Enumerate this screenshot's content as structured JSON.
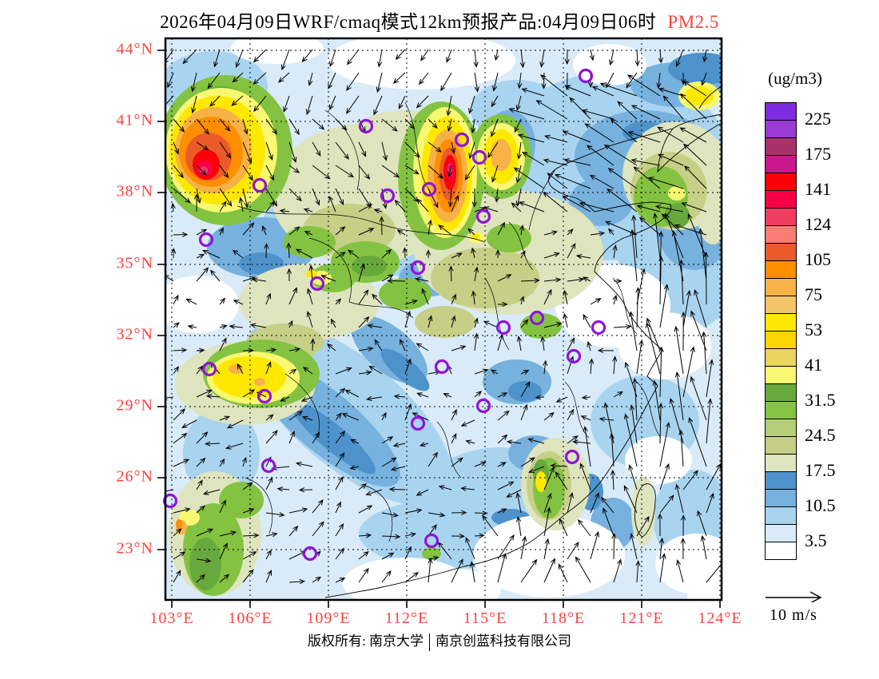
{
  "title": {
    "text": "2026年04月09日WRF/cmaq模式12km预报产品:04月09日06时",
    "pollutant": "PM2.5",
    "highlight_color": "#FF4040"
  },
  "colorbar": {
    "unit": "(ug/m3)",
    "tick_labels": [
      "225",
      "175",
      "141",
      "124",
      "105",
      "75",
      "53",
      "41",
      "31.5",
      "24.5",
      "17.5",
      "10.5",
      "3.5"
    ],
    "cell_colors": [
      "#7D2CE0",
      "#9A3BD6",
      "#A83268",
      "#C9188C",
      "#FB0007",
      "#F80045",
      "#F03C5F",
      "#F97D72",
      "#EB5A29",
      "#FF8E00",
      "#F6B246",
      "#F3C468",
      "#FFE800",
      "#FFD400",
      "#EBD45F",
      "#F8F871",
      "#68A93D",
      "#85C343",
      "#B4D077",
      "#C6CF86",
      "#DEE4BE",
      "#4D92CA",
      "#77B1DE",
      "#A9D4F0",
      "#D9EBF8",
      "#FFFFFF"
    ]
  },
  "axes": {
    "lat_ticks": [
      "44°N",
      "41°N",
      "38°N",
      "35°N",
      "32°N",
      "29°N",
      "26°N",
      "23°N"
    ],
    "lon_ticks": [
      "103°E",
      "106°E",
      "109°E",
      "112°E",
      "115°E",
      "118°E",
      "121°E",
      "124°E"
    ],
    "label_color": "#FF4040"
  },
  "wind_legend": {
    "label": "10 m/s"
  },
  "footer": {
    "left": "版权所有: 南京大学",
    "right": "南京创蓝科技有限公司"
  },
  "map": {
    "marker_color": "#9013D9",
    "station_markers": [
      [
        526,
        47
      ],
      [
        251,
        110
      ],
      [
        371,
        127
      ],
      [
        393,
        149
      ],
      [
        118,
        184
      ],
      [
        330,
        189
      ],
      [
        278,
        197
      ],
      [
        398,
        223
      ],
      [
        51,
        252
      ],
      [
        316,
        287
      ],
      [
        190,
        307
      ],
      [
        465,
        350
      ],
      [
        423,
        362
      ],
      [
        542,
        362
      ],
      [
        511,
        398
      ],
      [
        55,
        414
      ],
      [
        124,
        448
      ],
      [
        346,
        411
      ],
      [
        398,
        460
      ],
      [
        316,
        482
      ],
      [
        129,
        535
      ],
      [
        509,
        524
      ],
      [
        6,
        579
      ],
      [
        181,
        645
      ],
      [
        333,
        629
      ]
    ]
  },
  "chart_data": {
    "type": "heatmap",
    "title": "2026年04月09日WRF/cmaq模式12km预报产品:04月09日06时 PM2.5",
    "units": "ug/m3",
    "colorbar_levels": [
      3.5,
      10.5,
      17.5,
      24.5,
      31.5,
      41,
      53,
      75,
      105,
      124,
      141,
      175,
      225
    ],
    "x_ticks_deg_east": [
      103,
      106,
      109,
      112,
      115,
      118,
      121,
      124
    ],
    "y_ticks_deg_north": [
      44,
      41,
      38,
      35,
      32,
      29,
      26,
      23
    ],
    "legend_position": "right",
    "grid": "dotted"
  }
}
